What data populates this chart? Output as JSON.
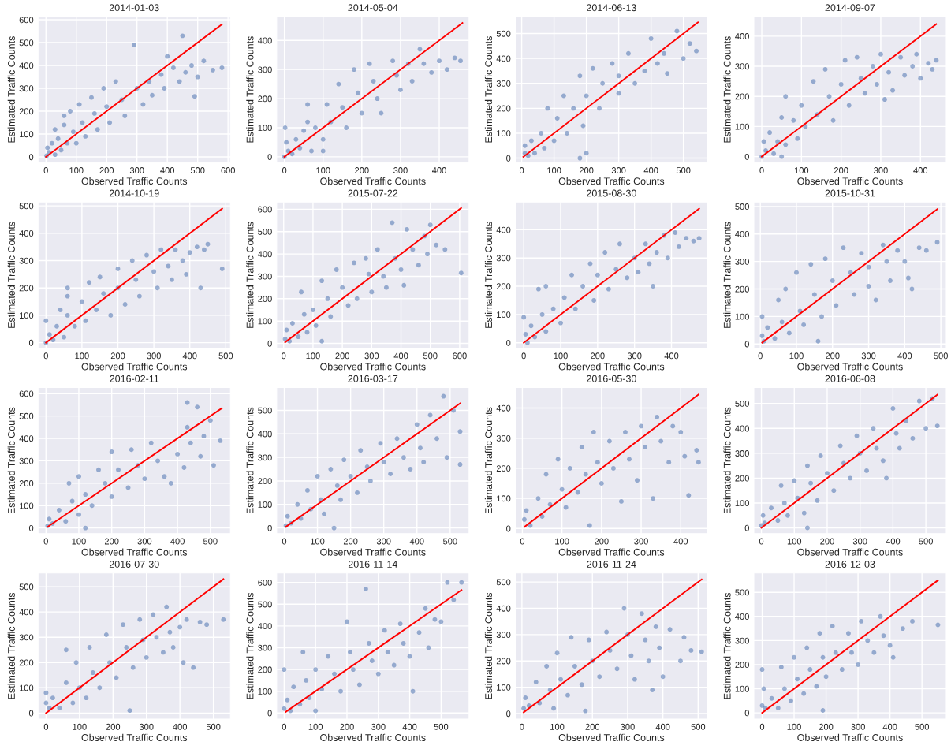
{
  "chart_data": [
    {
      "type": "scatter",
      "title": "2014-01-03",
      "xlabel": "Observed Traffic Counts",
      "ylabel": "Estimated Traffic Counts",
      "xlim": [
        -26,
        608
      ],
      "ylim": [
        -25,
        614
      ],
      "xticks": [
        0,
        100,
        200,
        300,
        400,
        500,
        600
      ],
      "yticks": [
        0,
        100,
        200,
        300,
        400,
        500,
        600
      ],
      "grid": true,
      "series": [
        {
          "type": "scatter",
          "marker": "circle",
          "color": "#4c72b0",
          "x": [
            2,
            5,
            10,
            20,
            30,
            40,
            50,
            60,
            60,
            70,
            80,
            90,
            100,
            110,
            120,
            130,
            150,
            160,
            170,
            190,
            200,
            210,
            230,
            250,
            260,
            290,
            300,
            320,
            340,
            350,
            380,
            390,
            400,
            420,
            440,
            450,
            460,
            480,
            500,
            520,
            550,
            580,
            490,
            30
          ],
          "values": [
            5,
            40,
            20,
            60,
            10,
            80,
            30,
            140,
            180,
            60,
            200,
            110,
            60,
            230,
            150,
            90,
            260,
            190,
            120,
            300,
            220,
            150,
            330,
            250,
            180,
            490,
            300,
            230,
            330,
            270,
            360,
            300,
            440,
            390,
            330,
            530,
            370,
            400,
            350,
            420,
            380,
            390,
            265,
            120
          ]
        },
        {
          "type": "line",
          "color": "#ff0000",
          "x": [
            0,
            580
          ],
          "values": [
            0,
            580
          ]
        }
      ]
    },
    {
      "type": "scatter",
      "title": "2014-05-04",
      "xlabel": "Observed Traffic Counts",
      "ylabel": "Estimated Traffic Counts",
      "xlim": [
        -20,
        477
      ],
      "ylim": [
        -20,
        482
      ],
      "xticks": [
        0,
        100,
        200,
        300,
        400
      ],
      "yticks": [
        0,
        100,
        200,
        300,
        400
      ],
      "grid": true,
      "series": [
        {
          "type": "scatter",
          "marker": "circle",
          "color": "#4c72b0",
          "x": [
            0,
            2,
            5,
            10,
            20,
            30,
            40,
            50,
            60,
            60,
            70,
            80,
            100,
            110,
            120,
            140,
            150,
            160,
            180,
            190,
            200,
            220,
            230,
            240,
            250,
            280,
            290,
            300,
            320,
            330,
            350,
            360,
            380,
            400,
            420,
            440,
            455,
            100
          ],
          "values": [
            0,
            100,
            50,
            20,
            10,
            60,
            30,
            90,
            180,
            120,
            20,
            100,
            60,
            180,
            120,
            250,
            170,
            100,
            300,
            220,
            150,
            320,
            260,
            200,
            150,
            330,
            280,
            230,
            320,
            260,
            370,
            320,
            290,
            330,
            300,
            340,
            330,
            20
          ]
        },
        {
          "type": "line",
          "color": "#ff0000",
          "x": [
            0,
            460
          ],
          "values": [
            0,
            460
          ]
        }
      ]
    },
    {
      "type": "scatter",
      "title": "2014-06-13",
      "xlabel": "Observed Traffic Counts",
      "ylabel": "Estimated Traffic Counts",
      "xlim": [
        -20,
        575
      ],
      "ylim": [
        -18,
        568
      ],
      "xticks": [
        0,
        100,
        200,
        300,
        400,
        500
      ],
      "yticks": [
        0,
        100,
        200,
        300,
        400,
        500
      ],
      "grid": true,
      "series": [
        {
          "type": "scatter",
          "marker": "circle",
          "color": "#4c72b0",
          "x": [
            10,
            10,
            20,
            30,
            40,
            60,
            70,
            80,
            100,
            110,
            130,
            140,
            160,
            180,
            190,
            200,
            220,
            240,
            250,
            280,
            300,
            300,
            330,
            350,
            380,
            400,
            420,
            440,
            450,
            480,
            500,
            520,
            540,
            200,
            180
          ],
          "values": [
            20,
            50,
            10,
            70,
            20,
            100,
            40,
            200,
            70,
            160,
            250,
            100,
            200,
            330,
            130,
            250,
            360,
            200,
            300,
            380,
            260,
            330,
            420,
            300,
            350,
            480,
            380,
            420,
            340,
            510,
            400,
            460,
            430,
            20,
            0
          ]
        },
        {
          "type": "line",
          "color": "#ff0000",
          "x": [
            5,
            545
          ],
          "values": [
            5,
            545
          ]
        }
      ]
    },
    {
      "type": "scatter",
      "title": "2014-09-07",
      "xlabel": "Observed Traffic Counts",
      "ylabel": "Estimated Traffic Counts",
      "xlim": [
        -20,
        465
      ],
      "ylim": [
        -20,
        465
      ],
      "xticks": [
        0,
        100,
        200,
        300,
        400
      ],
      "yticks": [
        0,
        100,
        200,
        300,
        400
      ],
      "grid": true,
      "series": [
        {
          "type": "scatter",
          "marker": "circle",
          "color": "#4c72b0",
          "x": [
            0,
            5,
            10,
            20,
            30,
            40,
            50,
            60,
            60,
            80,
            90,
            100,
            110,
            130,
            140,
            160,
            170,
            180,
            200,
            210,
            220,
            240,
            250,
            260,
            280,
            290,
            300,
            320,
            330,
            350,
            360,
            380,
            390,
            400,
            420,
            430,
            440,
            310,
            50
          ],
          "values": [
            0,
            50,
            20,
            80,
            10,
            50,
            130,
            40,
            200,
            120,
            60,
            170,
            100,
            250,
            140,
            290,
            200,
            120,
            240,
            320,
            170,
            330,
            260,
            210,
            300,
            240,
            340,
            280,
            220,
            330,
            270,
            300,
            340,
            260,
            310,
            290,
            320,
            190,
            0
          ]
        },
        {
          "type": "line",
          "color": "#ff0000",
          "x": [
            0,
            440
          ],
          "values": [
            0,
            440
          ]
        }
      ]
    },
    {
      "type": "scatter",
      "title": "2014-10-19",
      "xlabel": "Observed Traffic Counts",
      "ylabel": "Estimated Traffic Counts",
      "xlim": [
        -22,
        513
      ],
      "ylim": [
        -20,
        514
      ],
      "xticks": [
        0,
        100,
        200,
        300,
        400,
        500
      ],
      "yticks": [
        0,
        100,
        200,
        300,
        400,
        500
      ],
      "grid": true,
      "series": [
        {
          "type": "scatter",
          "marker": "circle",
          "color": "#4c72b0",
          "x": [
            0,
            0,
            10,
            20,
            30,
            40,
            50,
            60,
            60,
            80,
            100,
            110,
            120,
            140,
            150,
            160,
            180,
            200,
            200,
            220,
            240,
            250,
            260,
            280,
            300,
            310,
            320,
            340,
            350,
            360,
            380,
            390,
            400,
            420,
            440,
            450,
            490,
            430,
            60
          ],
          "values": [
            0,
            80,
            30,
            10,
            60,
            120,
            20,
            200,
            100,
            60,
            150,
            80,
            220,
            120,
            240,
            180,
            100,
            270,
            200,
            140,
            300,
            230,
            170,
            320,
            260,
            200,
            340,
            280,
            230,
            340,
            300,
            250,
            330,
            350,
            340,
            360,
            270,
            200,
            170
          ]
        },
        {
          "type": "line",
          "color": "#ff0000",
          "x": [
            0,
            490
          ],
          "values": [
            0,
            490
          ]
        }
      ]
    },
    {
      "type": "scatter",
      "title": "2015-07-22",
      "xlabel": "Observed Traffic Counts",
      "ylabel": "Estimated Traffic Counts",
      "xlim": [
        -24,
        632
      ],
      "ylim": [
        -21,
        632
      ],
      "xticks": [
        0,
        100,
        200,
        300,
        400,
        500,
        600
      ],
      "yticks": [
        0,
        100,
        200,
        300,
        400,
        500,
        600
      ],
      "grid": true,
      "series": [
        {
          "type": "scatter",
          "marker": "circle",
          "color": "#4c72b0",
          "x": [
            5,
            10,
            20,
            30,
            50,
            60,
            70,
            80,
            100,
            110,
            130,
            150,
            160,
            180,
            200,
            220,
            240,
            250,
            280,
            290,
            300,
            320,
            340,
            350,
            370,
            380,
            400,
            410,
            420,
            440,
            460,
            480,
            490,
            500,
            520,
            550,
            605,
            130
          ],
          "values": [
            20,
            60,
            10,
            90,
            30,
            230,
            130,
            50,
            150,
            80,
            280,
            200,
            120,
            330,
            250,
            170,
            360,
            200,
            380,
            310,
            230,
            420,
            300,
            250,
            540,
            380,
            330,
            260,
            510,
            420,
            350,
            480,
            400,
            530,
            440,
            420,
            315,
            10
          ]
        },
        {
          "type": "line",
          "color": "#ff0000",
          "x": [
            5,
            605
          ],
          "values": [
            5,
            605
          ]
        }
      ]
    },
    {
      "type": "scatter",
      "title": "2015-08-30",
      "xlabel": "Observed Traffic Counts",
      "ylabel": "Estimated Traffic Counts",
      "xlim": [
        -23,
        498
      ],
      "ylim": [
        -19,
        498
      ],
      "xticks": [
        0,
        100,
        200,
        300,
        400
      ],
      "yticks": [
        0,
        100,
        200,
        300,
        400
      ],
      "grid": true,
      "series": [
        {
          "type": "scatter",
          "marker": "circle",
          "color": "#4c72b0",
          "x": [
            0,
            5,
            10,
            20,
            30,
            50,
            60,
            60,
            80,
            100,
            110,
            130,
            140,
            160,
            180,
            190,
            200,
            220,
            230,
            250,
            260,
            280,
            300,
            310,
            330,
            340,
            360,
            380,
            390,
            410,
            420,
            440,
            460,
            475,
            40,
            350
          ],
          "values": [
            90,
            30,
            0,
            60,
            20,
            100,
            200,
            40,
            120,
            70,
            160,
            240,
            120,
            200,
            280,
            150,
            240,
            320,
            190,
            260,
            350,
            230,
            300,
            250,
            350,
            280,
            320,
            380,
            300,
            390,
            340,
            370,
            360,
            370,
            190,
            200
          ]
        },
        {
          "type": "line",
          "color": "#ff0000",
          "x": [
            0,
            475
          ],
          "values": [
            0,
            475
          ]
        }
      ]
    },
    {
      "type": "scatter",
      "title": "2015-10-31",
      "xlabel": "Observed Traffic Counts",
      "ylabel": "Estimated Traffic Counts",
      "xlim": [
        -18,
        515
      ],
      "ylim": [
        -15,
        516
      ],
      "xticks": [
        0,
        100,
        200,
        300,
        400,
        500
      ],
      "yticks": [
        0,
        100,
        200,
        300,
        400,
        500
      ],
      "grid": true,
      "series": [
        {
          "type": "scatter",
          "marker": "circle",
          "color": "#4c72b0",
          "x": [
            5,
            5,
            10,
            20,
            40,
            50,
            60,
            70,
            80,
            100,
            110,
            120,
            140,
            150,
            170,
            180,
            200,
            210,
            230,
            250,
            260,
            280,
            300,
            300,
            320,
            340,
            350,
            360,
            380,
            400,
            410,
            420,
            440,
            460,
            490,
            160
          ],
          "values": [
            30,
            100,
            10,
            60,
            20,
            160,
            80,
            200,
            40,
            260,
            120,
            70,
            290,
            180,
            100,
            310,
            230,
            140,
            350,
            260,
            180,
            330,
            280,
            210,
            160,
            360,
            300,
            230,
            340,
            300,
            240,
            200,
            350,
            340,
            370,
            10
          ]
        },
        {
          "type": "line",
          "color": "#ff0000",
          "x": [
            5,
            490
          ],
          "values": [
            5,
            490
          ]
        }
      ]
    },
    {
      "type": "scatter",
      "title": "2016-02-11",
      "xlabel": "Observed Traffic Counts",
      "ylabel": "Estimated Traffic Counts",
      "xlim": [
        -24,
        561
      ],
      "ylim": [
        -25,
        627
      ],
      "xticks": [
        0,
        100,
        200,
        300,
        400,
        500
      ],
      "yticks": [
        0,
        100,
        200,
        300,
        400,
        500,
        600
      ],
      "grid": true,
      "series": [
        {
          "type": "scatter",
          "marker": "circle",
          "color": "#4c72b0",
          "x": [
            5,
            10,
            20,
            40,
            60,
            70,
            80,
            100,
            100,
            120,
            140,
            160,
            180,
            200,
            200,
            220,
            250,
            260,
            280,
            300,
            320,
            340,
            360,
            380,
            400,
            420,
            430,
            440,
            460,
            470,
            480,
            500,
            510,
            530,
            430,
            120
          ],
          "values": [
            10,
            40,
            20,
            80,
            30,
            200,
            120,
            60,
            230,
            150,
            100,
            260,
            200,
            140,
            340,
            260,
            180,
            350,
            280,
            220,
            380,
            300,
            230,
            200,
            330,
            270,
            450,
            380,
            540,
            320,
            410,
            480,
            280,
            390,
            560,
            0
          ]
        },
        {
          "type": "line",
          "color": "#ff0000",
          "x": [
            5,
            535
          ],
          "values": [
            5,
            535
          ]
        }
      ]
    },
    {
      "type": "scatter",
      "title": "2016-03-17",
      "xlabel": "Observed Traffic Counts",
      "ylabel": "Estimated Traffic Counts",
      "xlim": [
        -23,
        557
      ],
      "ylim": [
        -24,
        597
      ],
      "xticks": [
        0,
        100,
        200,
        300,
        400,
        500
      ],
      "yticks": [
        0,
        100,
        200,
        300,
        400,
        500
      ],
      "grid": true,
      "series": [
        {
          "type": "scatter",
          "marker": "circle",
          "color": "#4c72b0",
          "x": [
            5,
            10,
            20,
            40,
            50,
            70,
            80,
            100,
            110,
            120,
            140,
            160,
            170,
            180,
            200,
            220,
            230,
            250,
            260,
            290,
            300,
            320,
            340,
            360,
            380,
            400,
            410,
            420,
            440,
            460,
            480,
            490,
            510,
            530,
            530,
            150
          ],
          "values": [
            10,
            50,
            20,
            100,
            40,
            160,
            80,
            220,
            120,
            60,
            250,
            180,
            120,
            290,
            220,
            150,
            330,
            260,
            200,
            360,
            280,
            230,
            380,
            300,
            250,
            440,
            340,
            280,
            480,
            380,
            560,
            300,
            500,
            410,
            270,
            0
          ]
        },
        {
          "type": "line",
          "color": "#ff0000",
          "x": [
            5,
            530
          ],
          "values": [
            5,
            530
          ]
        }
      ]
    },
    {
      "type": "scatter",
      "title": "2016-05-30",
      "xlabel": "Observed Traffic Counts",
      "ylabel": "Estimated Traffic Counts",
      "xlim": [
        -18,
        468
      ],
      "ylim": [
        -17,
        468
      ],
      "xticks": [
        0,
        100,
        200,
        300,
        400
      ],
      "yticks": [
        0,
        100,
        200,
        300,
        400
      ],
      "grid": true,
      "series": [
        {
          "type": "scatter",
          "marker": "circle",
          "color": "#4c72b0",
          "x": [
            5,
            10,
            20,
            40,
            50,
            60,
            70,
            90,
            100,
            110,
            120,
            140,
            150,
            160,
            170,
            180,
            190,
            200,
            220,
            230,
            250,
            260,
            270,
            290,
            300,
            310,
            330,
            340,
            350,
            370,
            380,
            400,
            410,
            420,
            440,
            445
          ],
          "values": [
            30,
            60,
            10,
            100,
            40,
            180,
            80,
            230,
            130,
            70,
            200,
            120,
            270,
            180,
            10,
            320,
            220,
            150,
            290,
            200,
            90,
            320,
            230,
            160,
            340,
            270,
            100,
            370,
            290,
            220,
            340,
            320,
            240,
            110,
            260,
            220
          ]
        },
        {
          "type": "line",
          "color": "#ff0000",
          "x": [
            5,
            445
          ],
          "values": [
            5,
            445
          ]
        }
      ]
    },
    {
      "type": "scatter",
      "title": "2016-06-08",
      "xlabel": "Observed Traffic Counts",
      "ylabel": "Estimated Traffic Counts",
      "xlim": [
        -23,
        562
      ],
      "ylim": [
        -23,
        564
      ],
      "xticks": [
        0,
        100,
        200,
        300,
        400,
        500
      ],
      "yticks": [
        0,
        100,
        200,
        300,
        400,
        500
      ],
      "grid": true,
      "series": [
        {
          "type": "scatter",
          "marker": "circle",
          "color": "#4c72b0",
          "x": [
            0,
            5,
            10,
            30,
            50,
            60,
            70,
            80,
            100,
            110,
            130,
            140,
            150,
            170,
            180,
            200,
            220,
            240,
            250,
            270,
            290,
            300,
            320,
            340,
            350,
            370,
            380,
            400,
            410,
            420,
            440,
            460,
            480,
            500,
            520,
            535,
            140
          ],
          "values": [
            10,
            50,
            20,
            80,
            30,
            170,
            100,
            50,
            190,
            120,
            60,
            250,
            180,
            110,
            290,
            220,
            150,
            330,
            260,
            200,
            370,
            300,
            230,
            400,
            320,
            270,
            200,
            480,
            380,
            320,
            430,
            360,
            510,
            400,
            520,
            410,
            0
          ]
        },
        {
          "type": "line",
          "color": "#ff0000",
          "x": [
            0,
            535
          ],
          "values": [
            0,
            535
          ]
        }
      ]
    },
    {
      "type": "scatter",
      "title": "2016-07-30",
      "xlabel": "Observed Traffic Counts",
      "ylabel": "Estimated Traffic Counts",
      "xlim": [
        -24,
        551
      ],
      "ylim": [
        -24,
        554
      ],
      "xticks": [
        0,
        100,
        200,
        300,
        400,
        500
      ],
      "yticks": [
        0,
        100,
        200,
        300,
        400,
        500
      ],
      "grid": true,
      "series": [
        {
          "type": "scatter",
          "marker": "circle",
          "color": "#4c72b0",
          "x": [
            0,
            0,
            10,
            20,
            40,
            60,
            60,
            80,
            90,
            100,
            120,
            130,
            140,
            160,
            180,
            190,
            210,
            230,
            240,
            250,
            260,
            280,
            290,
            300,
            320,
            330,
            350,
            360,
            370,
            380,
            400,
            410,
            420,
            440,
            460,
            480,
            530
          ],
          "values": [
            40,
            80,
            20,
            60,
            20,
            250,
            120,
            40,
            200,
            100,
            60,
            260,
            160,
            100,
            310,
            200,
            140,
            350,
            260,
            10,
            180,
            370,
            290,
            220,
            390,
            300,
            240,
            420,
            320,
            260,
            340,
            200,
            370,
            180,
            360,
            350,
            370
          ]
        },
        {
          "type": "line",
          "color": "#ff0000",
          "x": [
            0,
            530
          ],
          "values": [
            0,
            530
          ]
        }
      ]
    },
    {
      "type": "scatter",
      "title": "2016-11-14",
      "xlabel": "Observed Traffic Counts",
      "ylabel": "Estimated Traffic Counts",
      "xlim": [
        -24,
        589
      ],
      "ylim": [
        -28,
        643
      ],
      "xticks": [
        0,
        100,
        200,
        300,
        400,
        500
      ],
      "yticks": [
        0,
        100,
        200,
        300,
        400,
        500,
        600
      ],
      "grid": true,
      "series": [
        {
          "type": "scatter",
          "marker": "circle",
          "color": "#4c72b0",
          "x": [
            0,
            0,
            10,
            20,
            30,
            50,
            60,
            70,
            80,
            100,
            100,
            120,
            140,
            160,
            180,
            200,
            210,
            220,
            240,
            260,
            270,
            280,
            300,
            320,
            330,
            350,
            370,
            380,
            400,
            410,
            430,
            450,
            460,
            480,
            500,
            520,
            540,
            565
          ],
          "values": [
            20,
            200,
            60,
            10,
            120,
            40,
            280,
            150,
            70,
            10,
            200,
            110,
            260,
            180,
            100,
            420,
            280,
            200,
            130,
            570,
            320,
            240,
            180,
            380,
            280,
            220,
            410,
            320,
            260,
            100,
            370,
            480,
            300,
            430,
            420,
            600,
            520,
            600
          ]
        },
        {
          "type": "line",
          "color": "#ff0000",
          "x": [
            5,
            565
          ],
          "values": [
            5,
            565
          ]
        }
      ]
    },
    {
      "type": "scatter",
      "title": "2016-11-24",
      "xlabel": "Observed Traffic Counts",
      "ylabel": "Estimated Traffic Counts",
      "xlim": [
        -19,
        527
      ],
      "ylim": [
        -21,
        534
      ],
      "xticks": [
        0,
        100,
        200,
        300,
        400,
        500
      ],
      "yticks": [
        0,
        100,
        200,
        300,
        400,
        500
      ],
      "grid": true,
      "series": [
        {
          "type": "scatter",
          "marker": "circle",
          "color": "#4c72b0",
          "x": [
            5,
            10,
            20,
            40,
            50,
            70,
            80,
            90,
            100,
            110,
            130,
            140,
            150,
            170,
            180,
            190,
            200,
            220,
            240,
            250,
            270,
            290,
            300,
            310,
            320,
            340,
            350,
            360,
            370,
            380,
            390,
            400,
            420,
            450,
            460,
            480,
            510
          ],
          "values": [
            20,
            60,
            30,
            120,
            40,
            180,
            90,
            20,
            230,
            130,
            70,
            290,
            180,
            110,
            10,
            280,
            200,
            140,
            310,
            240,
            170,
            400,
            300,
            220,
            130,
            380,
            280,
            200,
            90,
            330,
            250,
            140,
            320,
            200,
            290,
            240,
            235
          ]
        },
        {
          "type": "line",
          "color": "#ff0000",
          "x": [
            5,
            510
          ],
          "values": [
            5,
            510
          ]
        }
      ]
    },
    {
      "type": "scatter",
      "title": "2016-12-03",
      "xlabel": "Observed Traffic Counts",
      "ylabel": "Estimated Traffic Counts",
      "xlim": [
        -26,
        576
      ],
      "ylim": [
        -26,
        580
      ],
      "xticks": [
        0,
        100,
        200,
        300,
        400,
        500
      ],
      "yticks": [
        0,
        100,
        200,
        300,
        400,
        500
      ],
      "grid": true,
      "series": [
        {
          "type": "scatter",
          "marker": "circle",
          "color": "#4c72b0",
          "x": [
            0,
            0,
            5,
            10,
            30,
            50,
            60,
            70,
            90,
            100,
            110,
            130,
            140,
            150,
            170,
            180,
            190,
            200,
            190,
            220,
            230,
            250,
            270,
            280,
            300,
            310,
            330,
            350,
            370,
            380,
            400,
            410,
            440,
            470,
            550
          ],
          "values": [
            30,
            180,
            100,
            20,
            60,
            20,
            190,
            100,
            50,
            230,
            140,
            80,
            270,
            180,
            110,
            330,
            230,
            150,
            10,
            360,
            250,
            180,
            330,
            250,
            200,
            380,
            300,
            250,
            400,
            320,
            280,
            230,
            350,
            380,
            365
          ]
        },
        {
          "type": "line",
          "color": "#ff0000",
          "x": [
            0,
            550
          ],
          "values": [
            0,
            550
          ]
        }
      ]
    }
  ]
}
